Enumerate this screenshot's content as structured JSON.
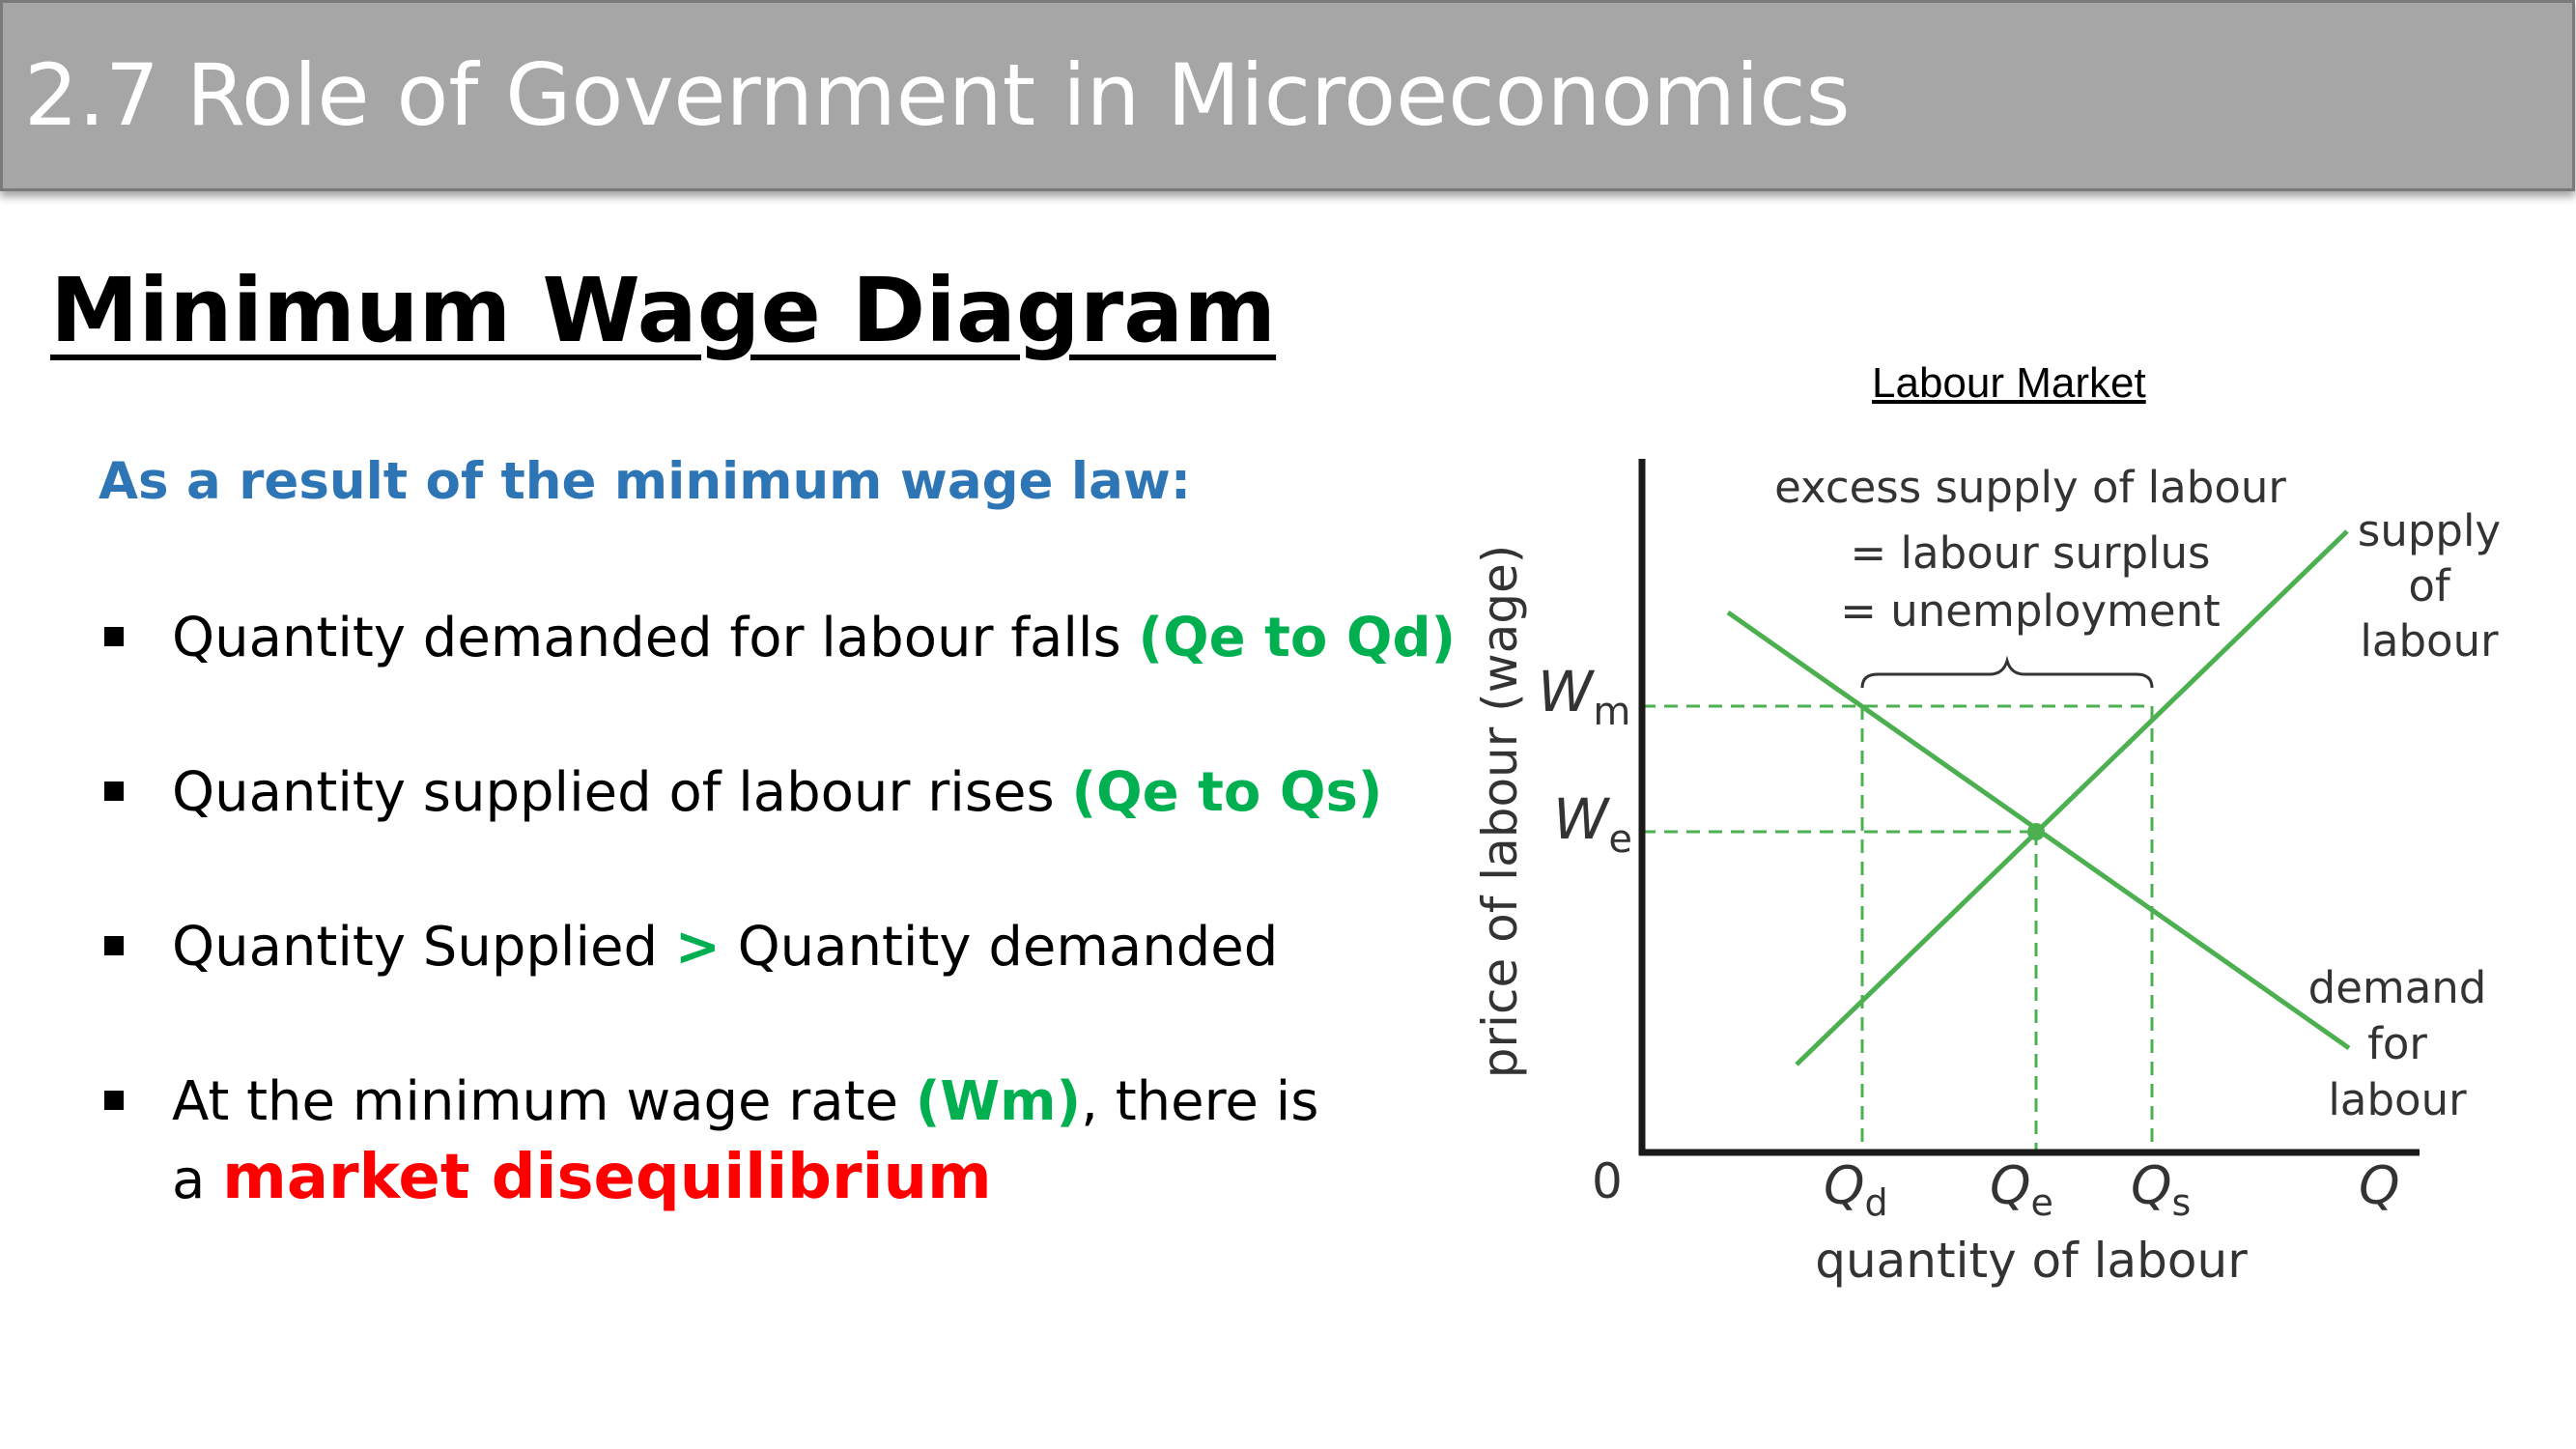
{
  "header": {
    "title": "2.7 Role of Government in Microeconomics"
  },
  "slide": {
    "subtitle": "Minimum Wage Diagram",
    "intro": "As a result of the minimum wage law:",
    "bullets": [
      {
        "text": "Quantity demanded for labour falls ",
        "highlight": "(Qe to Qd)"
      },
      {
        "text": "Quantity supplied of labour rises ",
        "highlight": "(Qe to Qs)"
      },
      {
        "text_before": "Quantity Supplied ",
        "highlight": ">",
        "text_after": " Quantity demanded"
      },
      {
        "text_before": "At the minimum wage rate ",
        "highlight": "(Wm)",
        "text_after": ", there is",
        "line2_prefix": "a ",
        "emphasis": "market disequilibrium"
      }
    ]
  },
  "diagram": {
    "title": "Labour Market",
    "y_axis_label": "price of labour (wage)",
    "x_axis_label": "quantity of labour",
    "origin": "0",
    "wm_label": {
      "main": "W",
      "sub": "m"
    },
    "we_label": {
      "main": "W",
      "sub": "e"
    },
    "qd_label": {
      "main": "Q",
      "sub": "d"
    },
    "qe_label": {
      "main": "Q",
      "sub": "e"
    },
    "qs_label": {
      "main": "Q",
      "sub": "s"
    },
    "q_label": "Q",
    "excess_lines": [
      "excess supply of labour",
      "= labour surplus",
      "= unemployment"
    ],
    "supply_lines": [
      "supply",
      "of",
      "labour"
    ],
    "demand_lines": [
      "demand",
      "for",
      "labour"
    ],
    "colors": {
      "curve": "#4caf50",
      "axis": "#1a1a1a",
      "guide": "#4caf50"
    }
  }
}
